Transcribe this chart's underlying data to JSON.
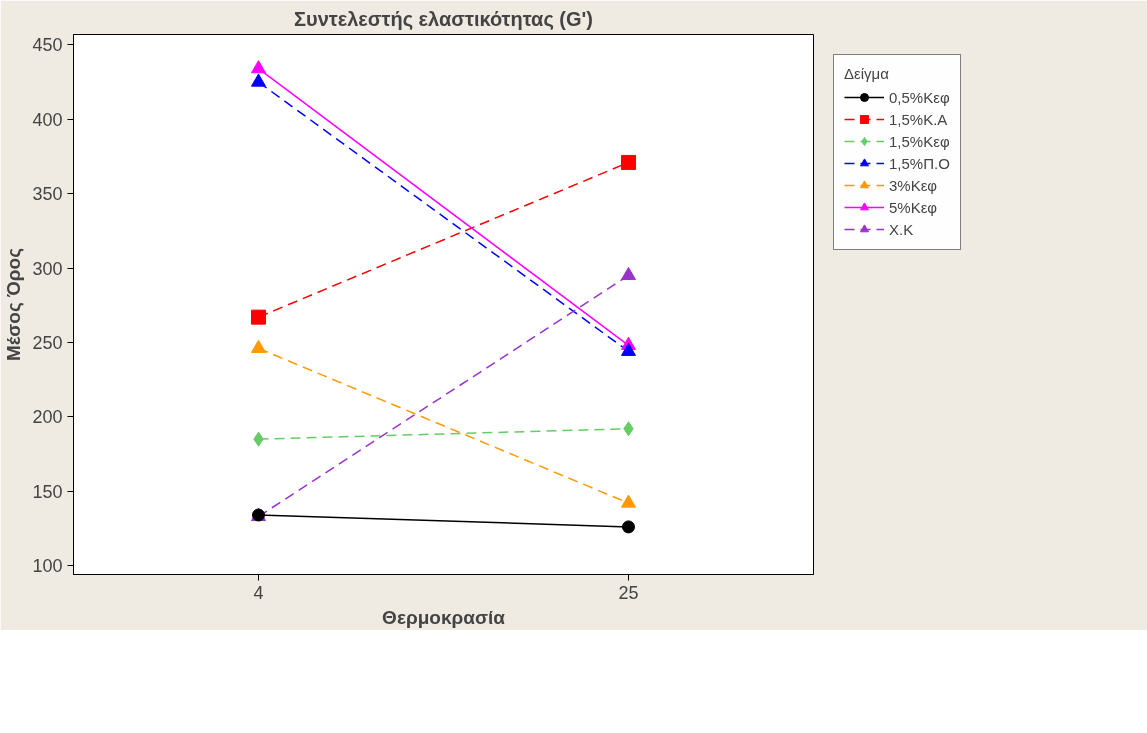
{
  "chart_data": {
    "type": "line",
    "title": "Συντελεστής ελαστικότητας (G')",
    "xlabel": "Θερμοκρασία",
    "ylabel": "Μέσος Όρος",
    "legend_title": "Δείγμα",
    "legend": "right",
    "grid": false,
    "categories": [
      "4",
      "25"
    ],
    "ylim": [
      94,
      457
    ],
    "yticks": [
      100,
      150,
      200,
      250,
      300,
      350,
      400,
      450
    ],
    "series": [
      {
        "name": "0,5%Κεφ",
        "color": "#000000",
        "values": [
          134,
          126
        ],
        "marker": "circle",
        "line_style": "solid"
      },
      {
        "name": "1,5%Κ.Α",
        "color": "#ff0000",
        "values": [
          267,
          371
        ],
        "marker": "square",
        "line_style": "dashed"
      },
      {
        "name": "1,5%Κεφ",
        "color": "#66cc66",
        "values": [
          185,
          192
        ],
        "marker": "diamond",
        "line_style": "dashed"
      },
      {
        "name": "1,5%Π.Ο",
        "color": "#0000ff",
        "values": [
          425,
          244
        ],
        "marker": "triangle",
        "line_style": "dashed"
      },
      {
        "name": "3%Κεφ",
        "color": "#ff9900",
        "values": [
          246,
          142
        ],
        "marker": "triangle",
        "line_style": "dashed"
      },
      {
        "name": "5%Κεφ",
        "color": "#ff00ff",
        "values": [
          434,
          248
        ],
        "marker": "triangle",
        "line_style": "solid"
      },
      {
        "name": "Χ.Κ",
        "color": "#9933cc",
        "values": [
          133,
          295
        ],
        "marker": "triangle",
        "line_style": "dashed"
      }
    ]
  }
}
